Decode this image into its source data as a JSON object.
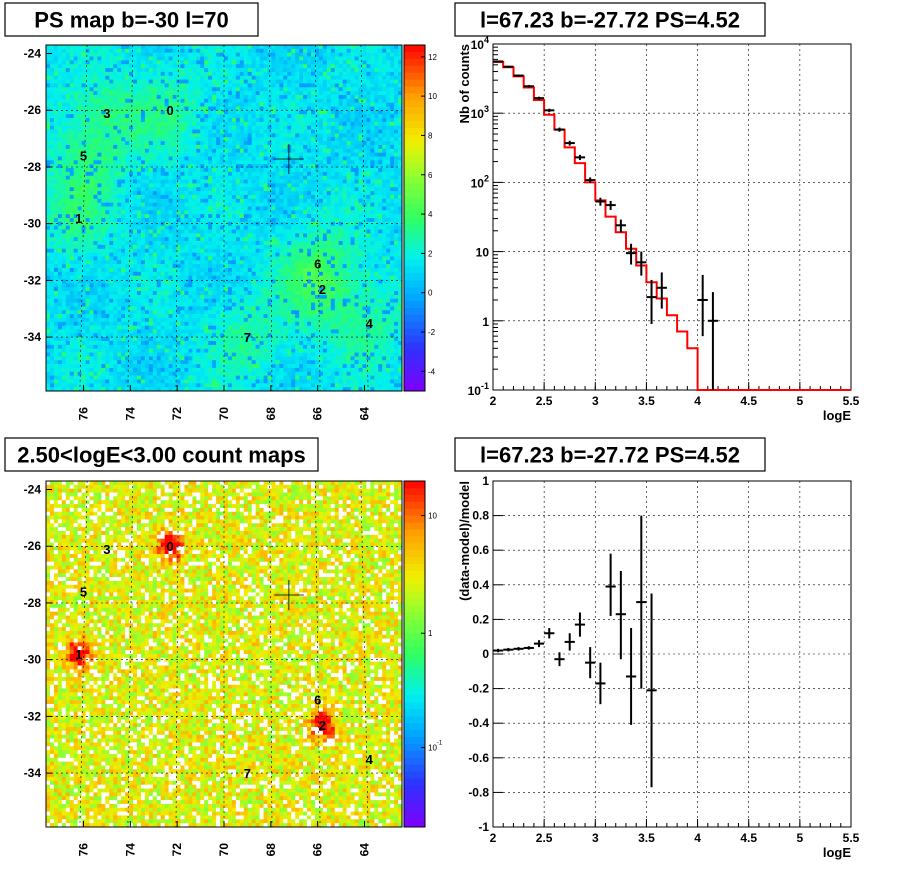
{
  "chart_data": [
    {
      "type": "heatmap",
      "title": "PS map b=-30 l=70",
      "xticks": [
        "76",
        "74",
        "72",
        "70",
        "68",
        "66",
        "64"
      ],
      "yticks": [
        "-24",
        "-26",
        "-28",
        "-30",
        "-32",
        "-34"
      ],
      "colorbar_ticks": [
        "12",
        "10",
        "8",
        "6",
        "4",
        "2",
        "0",
        "-2",
        "-4"
      ],
      "sources": [
        {
          "label": "0",
          "l": 72.3,
          "b": -26.0
        },
        {
          "label": "1",
          "l": 76.2,
          "b": -29.8
        },
        {
          "label": "2",
          "l": 65.8,
          "b": -32.3
        },
        {
          "label": "3",
          "l": 75.0,
          "b": -26.1
        },
        {
          "label": "4",
          "l": 63.8,
          "b": -33.5
        },
        {
          "label": "5",
          "l": 76.0,
          "b": -27.6
        },
        {
          "label": "6",
          "l": 66.0,
          "b": -31.4
        },
        {
          "label": "7",
          "l": 69.0,
          "b": -34.0
        }
      ],
      "marker": {
        "l": 67.23,
        "b": -27.72
      }
    },
    {
      "type": "line",
      "title": "l=67.23 b=-27.72 PS=4.52",
      "xlabel": "logE",
      "ylabel": "Nb of counts",
      "xlim": [
        2,
        5.5
      ],
      "ylim": [
        0.1,
        10000
      ],
      "yscale": "log",
      "grid": true,
      "xticks": [
        "2",
        "2.5",
        "3",
        "3.5",
        "4",
        "4.5",
        "5",
        "5.5"
      ],
      "yticks": [
        {
          "base": "10",
          "exp": "-1"
        },
        {
          "base": "1",
          "exp": ""
        },
        {
          "base": "10",
          "exp": ""
        },
        {
          "base": "10",
          "exp": "2"
        },
        {
          "base": "10",
          "exp": "3"
        },
        {
          "base": "10",
          "exp": "4"
        }
      ],
      "series": [
        {
          "style": "step",
          "color": "#ff0000",
          "x": [
            2.0,
            2.1,
            2.2,
            2.3,
            2.4,
            2.5,
            2.6,
            2.7,
            2.8,
            2.9,
            3.0,
            3.1,
            3.2,
            3.3,
            3.4,
            3.5,
            3.6,
            3.7,
            3.8,
            3.9,
            4.0,
            4.1,
            4.2,
            4.3,
            4.4,
            4.5,
            4.6,
            4.7,
            4.8,
            4.9,
            5.0,
            5.1,
            5.2,
            5.3,
            5.4
          ],
          "y": [
            5500,
            4600,
            3400,
            2350,
            1550,
            950,
            580,
            320,
            190,
            100,
            55,
            32,
            19,
            11,
            6.3,
            3.6,
            2.1,
            1.2,
            0.7,
            0.4,
            0.1,
            0.1,
            0.1,
            0.1,
            0.1,
            0.1,
            0.1,
            0.1,
            0.1,
            0.1,
            0.1,
            0.1,
            0.1,
            0.1,
            0.1
          ]
        },
        {
          "style": "points",
          "color": "#000000",
          "x": [
            2.05,
            2.15,
            2.25,
            2.35,
            2.45,
            2.55,
            2.65,
            2.75,
            2.85,
            2.95,
            3.05,
            3.15,
            3.25,
            3.35,
            3.45,
            3.55,
            3.65,
            4.05,
            4.15
          ],
          "y": [
            5600,
            4700,
            3500,
            2450,
            1650,
            1100,
            580,
            370,
            230,
            108,
            53,
            47,
            24,
            9.5,
            7,
            2.2,
            3,
            2,
            1
          ],
          "ylo": [
            5450,
            4560,
            3380,
            2350,
            1570,
            1040,
            540,
            340,
            210,
            98,
            46,
            40,
            19,
            6.5,
            4.5,
            0.9,
            1.5,
            0.6,
            0.1
          ],
          "yhi": [
            5750,
            4840,
            3620,
            2550,
            1730,
            1160,
            620,
            400,
            250,
            118,
            60,
            54,
            29,
            13,
            10,
            3.9,
            5,
            4.6,
            2.6
          ]
        }
      ]
    },
    {
      "type": "heatmap",
      "title": "2.50<logE<3.00 count maps",
      "xticks": [
        "76",
        "74",
        "72",
        "70",
        "68",
        "66",
        "64"
      ],
      "yticks": [
        "-24",
        "-26",
        "-28",
        "-30",
        "-32",
        "-34"
      ],
      "colorbar_ticks": [
        {
          "base": "10",
          "exp": ""
        },
        {
          "base": "1",
          "exp": ""
        },
        {
          "base": "10",
          "exp": "-1"
        }
      ],
      "sources": [
        {
          "label": "0",
          "l": 72.3,
          "b": -26.0
        },
        {
          "label": "1",
          "l": 76.2,
          "b": -29.8
        },
        {
          "label": "2",
          "l": 65.8,
          "b": -32.3
        },
        {
          "label": "3",
          "l": 75.0,
          "b": -26.1
        },
        {
          "label": "4",
          "l": 63.8,
          "b": -33.5
        },
        {
          "label": "5",
          "l": 76.0,
          "b": -27.6
        },
        {
          "label": "6",
          "l": 66.0,
          "b": -31.4
        },
        {
          "label": "7",
          "l": 69.0,
          "b": -34.0
        }
      ],
      "marker": {
        "l": 67.23,
        "b": -27.72
      }
    },
    {
      "type": "scatter",
      "title": "l=67.23 b=-27.72 PS=4.52",
      "xlabel": "logE",
      "ylabel": "(data-model)/model",
      "xlim": [
        2,
        5.5
      ],
      "ylim": [
        -1,
        1
      ],
      "grid": true,
      "xticks": [
        "2",
        "2.5",
        "3",
        "3.5",
        "4",
        "4.5",
        "5",
        "5.5"
      ],
      "yticks": [
        "1",
        "0.8",
        "0.6",
        "0.4",
        "0.2",
        "0",
        "-0.2",
        "-0.4",
        "-0.6",
        "-0.8",
        "-1"
      ],
      "series": [
        {
          "style": "points",
          "color": "#000000",
          "x": [
            2.05,
            2.15,
            2.25,
            2.35,
            2.45,
            2.55,
            2.65,
            2.75,
            2.85,
            2.95,
            3.05,
            3.15,
            3.25,
            3.35,
            3.45,
            3.55
          ],
          "y": [
            0.02,
            0.025,
            0.03,
            0.035,
            0.06,
            0.12,
            -0.03,
            0.07,
            0.17,
            -0.05,
            -0.17,
            0.39,
            0.23,
            -0.13,
            0.3,
            -0.21
          ],
          "ylo": [
            0.01,
            0.015,
            0.02,
            0.025,
            0.04,
            0.09,
            -0.07,
            0.02,
            0.1,
            -0.14,
            -0.29,
            0.22,
            -0.03,
            -0.41,
            -0.2,
            -0.77
          ],
          "yhi": [
            0.03,
            0.035,
            0.04,
            0.045,
            0.08,
            0.15,
            0.01,
            0.12,
            0.24,
            0.04,
            -0.05,
            0.58,
            0.48,
            0.15,
            0.8,
            0.35
          ]
        }
      ]
    }
  ]
}
